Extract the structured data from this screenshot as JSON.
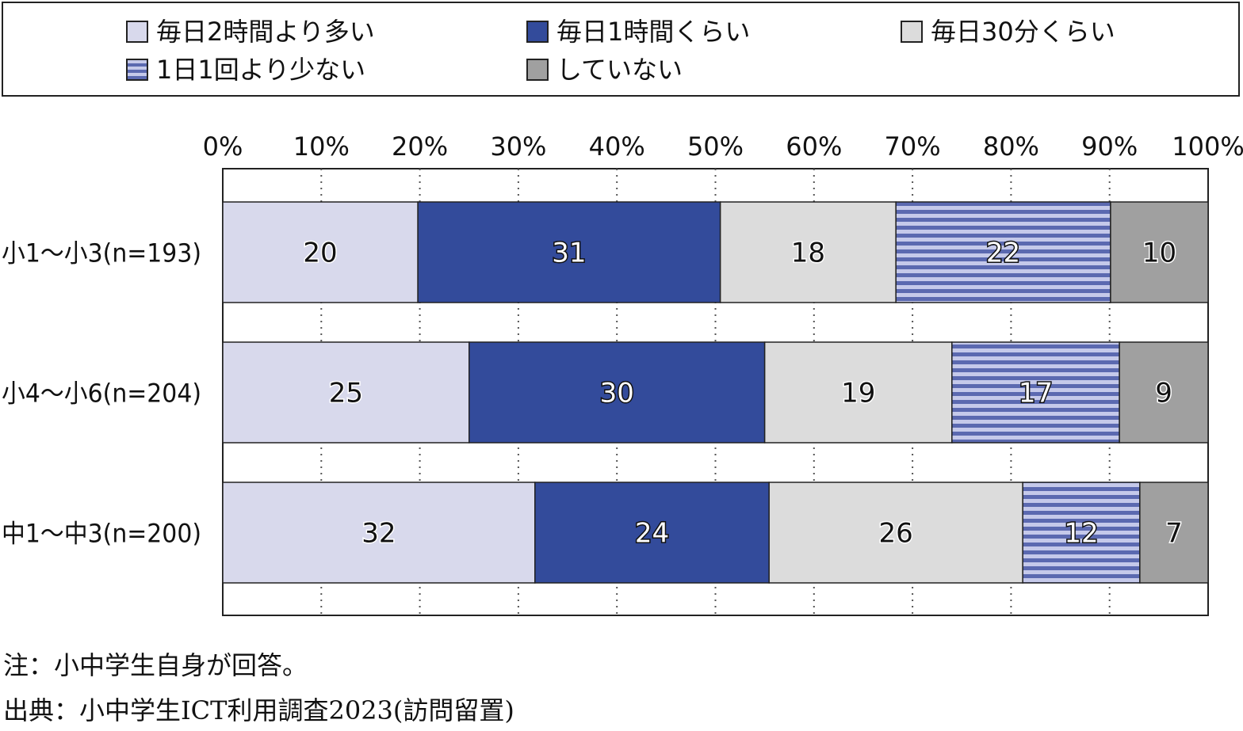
{
  "legend": [
    {
      "name": "毎日2時間より多い",
      "color": "#d8d9ec",
      "pattern": "solid"
    },
    {
      "name": "毎日1時間くらい",
      "color": "#334b9b",
      "pattern": "solid"
    },
    {
      "name": "毎日30分くらい",
      "color": "#dcdcdc",
      "pattern": "solid"
    },
    {
      "name": "1日1回より少ない",
      "color": "#5b69b0",
      "pattern": "stripe",
      "stripe_color": "#c5c9ea"
    },
    {
      "name": "していない",
      "color": "#a0a0a0",
      "pattern": "solid"
    }
  ],
  "chart_data": {
    "type": "bar",
    "orientation": "horizontal",
    "stacked": "100%",
    "categories": [
      "小1～小3(n=193)",
      "小4～小6(n=204)",
      "中1～中3(n=200)"
    ],
    "series": [
      {
        "name": "毎日2時間より多い",
        "values": [
          20,
          25,
          32
        ]
      },
      {
        "name": "毎日1時間くらい",
        "values": [
          31,
          30,
          24
        ]
      },
      {
        "name": "毎日30分くらい",
        "values": [
          18,
          19,
          26
        ]
      },
      {
        "name": "1日1回より少ない",
        "values": [
          22,
          17,
          12
        ]
      },
      {
        "name": "していない",
        "values": [
          10,
          9,
          7
        ]
      }
    ],
    "xlim": [
      0,
      100
    ],
    "xticks": [
      "0%",
      "10%",
      "20%",
      "30%",
      "40%",
      "50%",
      "60%",
      "70%",
      "80%",
      "90%",
      "100%"
    ],
    "grid": "vertical-dotted",
    "legend_position": "top"
  },
  "notes": {
    "note": "注：小中学生自身が回答。",
    "source": "出典：小中学生ICT利用調査2023(訪問留置)"
  }
}
